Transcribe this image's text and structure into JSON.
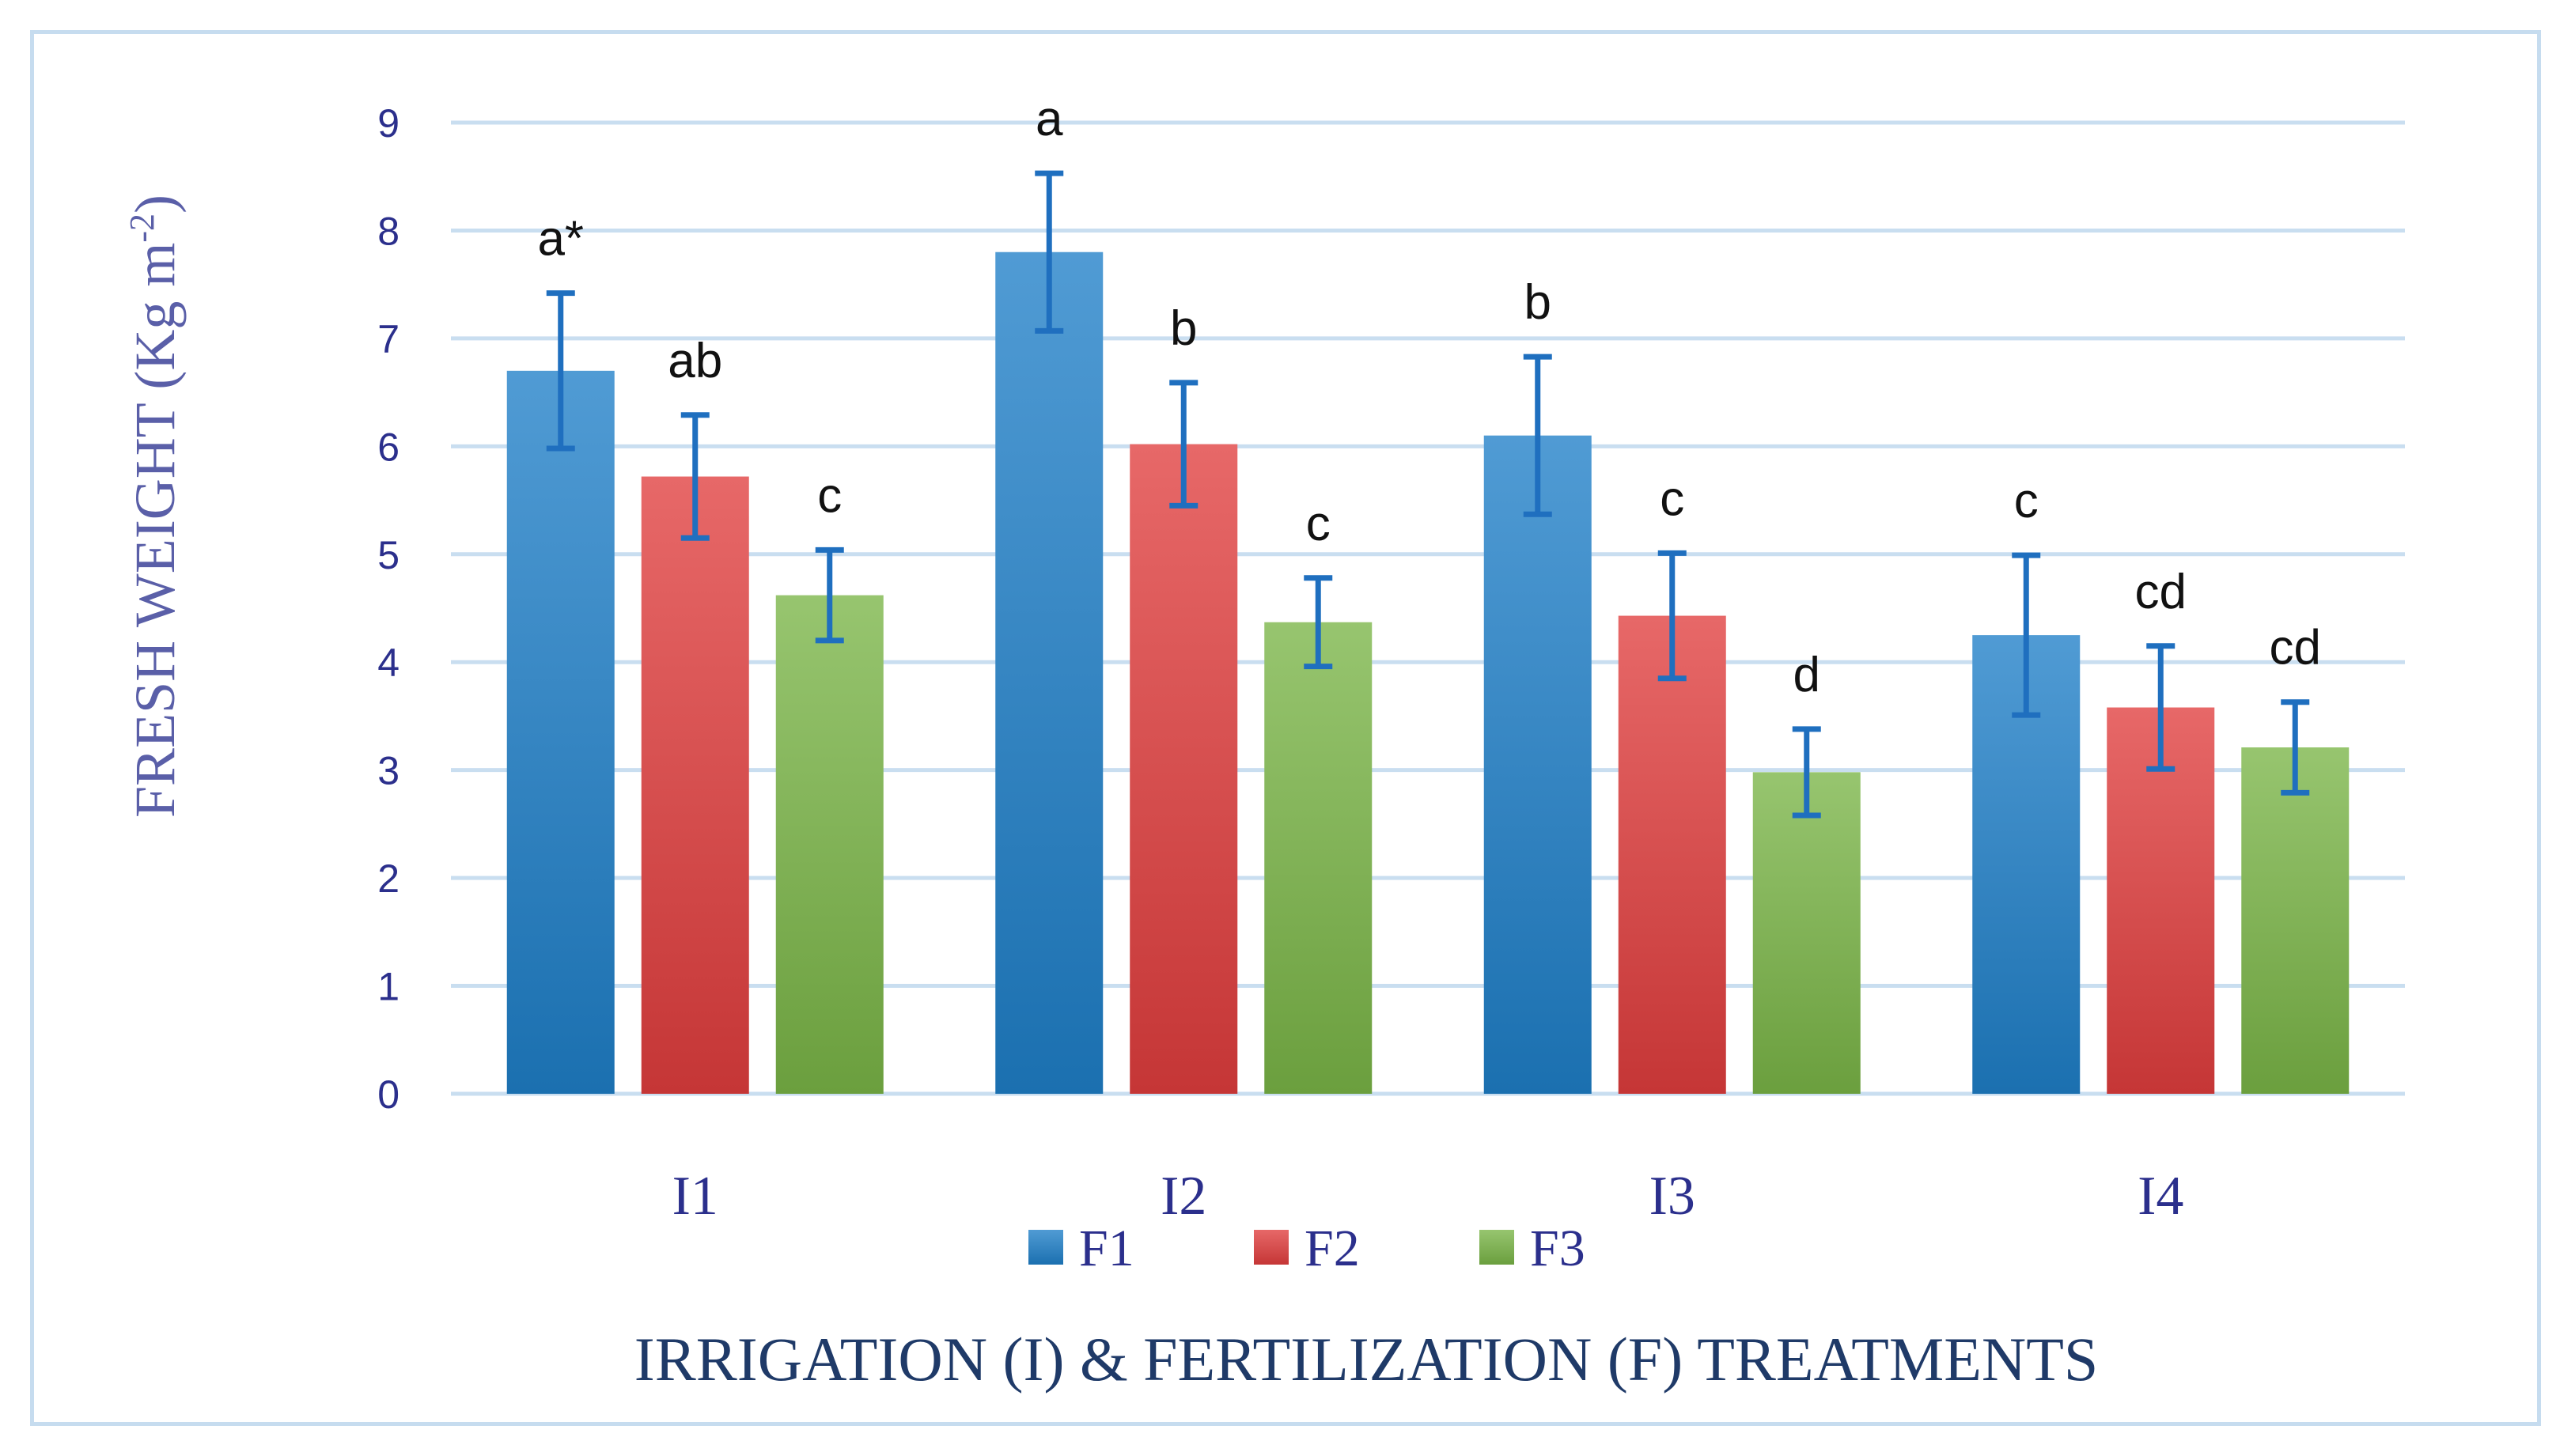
{
  "chart_data": {
    "type": "bar",
    "categories": [
      "I1",
      "I2",
      "I3",
      "I4"
    ],
    "series": [
      {
        "name": "F1",
        "color": "#1f7fc8",
        "values": [
          6.7,
          7.8,
          6.1,
          4.25
        ],
        "errors": [
          0.72,
          0.73,
          0.73,
          0.74
        ],
        "labels": [
          "a*",
          "a",
          "b",
          "c"
        ]
      },
      {
        "name": "F2",
        "color": "#e03d3d",
        "values": [
          5.72,
          6.02,
          4.43,
          3.58
        ],
        "errors": [
          0.57,
          0.57,
          0.58,
          0.57
        ],
        "labels": [
          "ab",
          "b",
          "c",
          "cd"
        ]
      },
      {
        "name": "F3",
        "color": "#7ab547",
        "values": [
          4.62,
          4.37,
          2.98,
          3.21
        ],
        "errors": [
          0.42,
          0.41,
          0.4,
          0.42
        ],
        "labels": [
          "c",
          "c",
          "d",
          "cd"
        ]
      }
    ],
    "ylim": [
      0,
      9
    ],
    "yticks": [
      "0",
      "1",
      "2",
      "3",
      "4",
      "5",
      "6",
      "7",
      "8",
      "9"
    ],
    "ylabel_main": "FRESH WEIGHT ",
    "ylabel_unit": "(Kg m",
    "ylabel_sup": "-2",
    "ylabel_close": ")",
    "xlabel": "IRRIGATION (I) & FERTILIZATION (F) TREATMENTS",
    "grid": true,
    "legend_position": "bottom"
  }
}
